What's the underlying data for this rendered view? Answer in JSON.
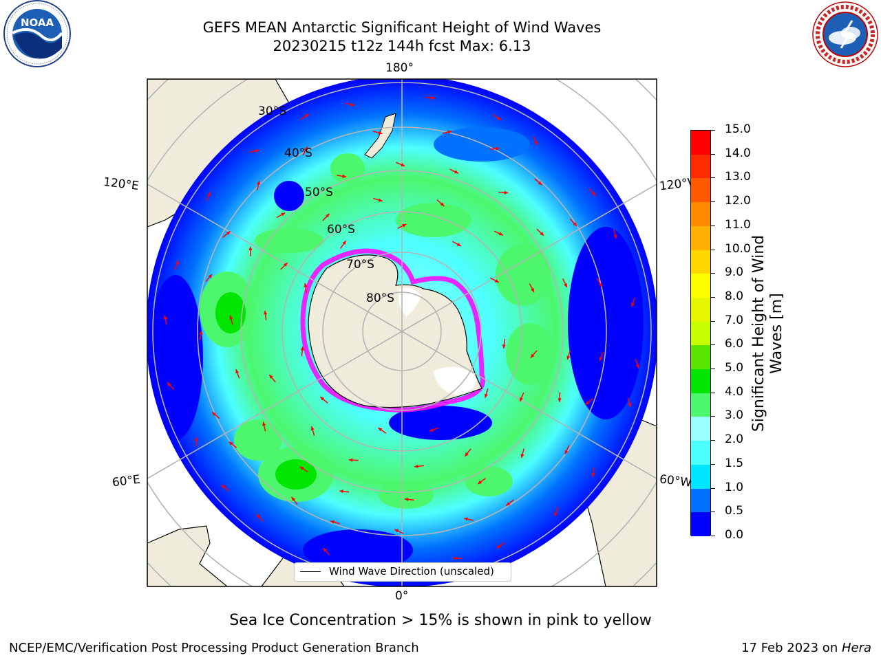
{
  "title": {
    "line1": "GEFS MEAN Antarctic Significant Height of Wind Waves",
    "line2": "20230215 t12z 144h fcst   Max: 6.13"
  },
  "logos": {
    "noara_text": "NOAA",
    "noaa_ring_text": "NATIONAL OCEANIC AND ATMOSPHERIC ADMINISTRATION · U.S. DEPARTMENT OF COMMERCE",
    "nws_ring_text": "NATIONAL WEATHER SERVICE"
  },
  "map": {
    "longitude_labels": [
      "180°",
      "120°E",
      "120°W",
      "60°E",
      "60°W",
      "0°"
    ],
    "latitude_labels": [
      "30°S",
      "40°S",
      "50°S",
      "60°S",
      "70°S",
      "80°S"
    ],
    "legend_label": "Wind Wave Direction (unscaled)",
    "colors": {
      "land": "#efecdc",
      "grid": "#b4b4b4",
      "arrow": "#ff0000",
      "ice_edge": "#ff00ff"
    }
  },
  "colorbar": {
    "label": "Significant Height of Wind Waves [m]",
    "ticks": [
      "0.0",
      "0.5",
      "1.0",
      "1.5",
      "2.0",
      "3.0",
      "4.0",
      "5.0",
      "6.0",
      "7.0",
      "8.0",
      "9.0",
      "10.0",
      "11.0",
      "12.0",
      "13.0",
      "14.0",
      "15.0"
    ],
    "colors": [
      "#0000ff",
      "#0072ff",
      "#00e5ff",
      "#4dffff",
      "#99ffff",
      "#4cf76d",
      "#00e600",
      "#5be600",
      "#c8ff00",
      "#e6f500",
      "#ffff00",
      "#ffd700",
      "#ffb000",
      "#ff8a00",
      "#ff5a00",
      "#ff2a00",
      "#ff0000"
    ]
  },
  "caption": "Sea Ice Concentration > 15% is shown in pink to yellow",
  "footer": {
    "left": "NCEP/EMC/Verification Post Processing Product Generation Branch",
    "right_date": "17 Feb 2023 on ",
    "right_machine": "Hera"
  }
}
